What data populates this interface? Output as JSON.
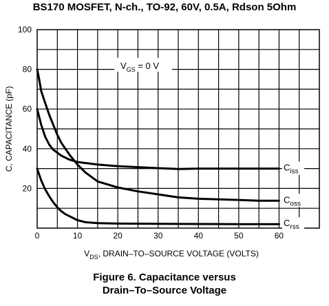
{
  "page": {
    "title": "BS170 MOSFET, N-ch., TO-92, 60V, 0.5A, Rdson 5Ohm",
    "caption_line1": "Figure 6. Capacitance versus",
    "caption_line2": "Drain–To–Source Voltage"
  },
  "chart_data": {
    "type": "line",
    "xlabel": {
      "main": "V",
      "sub": "DS",
      "rest": ", DRAIN–TO–SOURCE VOLTAGE (VOLTS)"
    },
    "ylabel": "C, CAPACITANCE (pF)",
    "xlim": [
      0,
      70
    ],
    "ylim": [
      0,
      100
    ],
    "xticks": [
      0,
      10,
      20,
      30,
      40,
      50,
      60
    ],
    "yticks": [
      20,
      40,
      60,
      80,
      100
    ],
    "grid": true,
    "annotation": {
      "main": "V",
      "sub": "GS",
      "rest": " = 0 V"
    },
    "series": [
      {
        "name": "Ciss",
        "label_main": "C",
        "label_sub": "iss",
        "points": [
          [
            0,
            60
          ],
          [
            1,
            52
          ],
          [
            2,
            46
          ],
          [
            3,
            42
          ],
          [
            4,
            39.5
          ],
          [
            6,
            36.5
          ],
          [
            8,
            34.5
          ],
          [
            10,
            33.3
          ],
          [
            15,
            32
          ],
          [
            20,
            31.2
          ],
          [
            30,
            30.2
          ],
          [
            35,
            29.8
          ],
          [
            40,
            30
          ],
          [
            50,
            30
          ],
          [
            60,
            30
          ]
        ]
      },
      {
        "name": "Coss",
        "label_main": "C",
        "label_sub": "oss",
        "points": [
          [
            0,
            80
          ],
          [
            0.5,
            75
          ],
          [
            1,
            69
          ],
          [
            2,
            63
          ],
          [
            3,
            57
          ],
          [
            4,
            52
          ],
          [
            5,
            47
          ],
          [
            6,
            43
          ],
          [
            7,
            40
          ],
          [
            8,
            37
          ],
          [
            10,
            32
          ],
          [
            12,
            28
          ],
          [
            15,
            23.5
          ],
          [
            20,
            20.5
          ],
          [
            25,
            18.5
          ],
          [
            30,
            17
          ],
          [
            35,
            15.5
          ],
          [
            40,
            14.8
          ],
          [
            45,
            14.5
          ],
          [
            50,
            14.2
          ],
          [
            55,
            13.8
          ],
          [
            60,
            13.8
          ]
        ]
      },
      {
        "name": "Crss",
        "label_main": "C",
        "label_sub": "rss",
        "points": [
          [
            0,
            30
          ],
          [
            0.5,
            27
          ],
          [
            1,
            24
          ],
          [
            2,
            19.5
          ],
          [
            3,
            16
          ],
          [
            4,
            13
          ],
          [
            5,
            10.5
          ],
          [
            6,
            8.5
          ],
          [
            7,
            7
          ],
          [
            8,
            6
          ],
          [
            10,
            4
          ],
          [
            12,
            3
          ],
          [
            15,
            2.5
          ],
          [
            20,
            2.3
          ],
          [
            30,
            2.2
          ],
          [
            40,
            2.1
          ],
          [
            50,
            2
          ],
          [
            60,
            2
          ]
        ]
      }
    ]
  }
}
